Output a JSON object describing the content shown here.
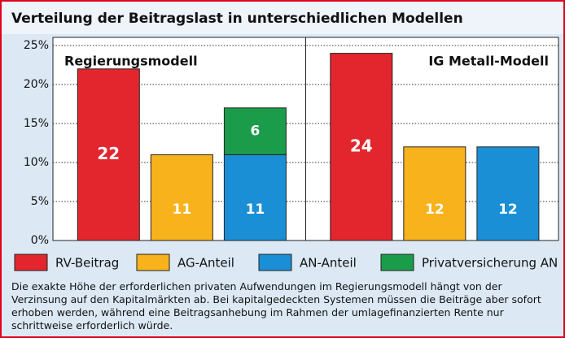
{
  "chart_data": {
    "type": "bar",
    "title": "Verteilung der Beitragslast in unterschiedlichen Modellen",
    "categories": [
      "Regierungsmodell",
      "IG Metall-Modell"
    ],
    "series": [
      {
        "name": "RV-Beitrag",
        "color": "#e3262d",
        "values": [
          22,
          24
        ]
      },
      {
        "name": "AG-Anteil",
        "color": "#f8b21c",
        "values": [
          11,
          12
        ]
      },
      {
        "name": "AN-Anteil",
        "color": "#1b8fd5",
        "values": [
          11,
          12
        ]
      },
      {
        "name": "Privatversicherung AN",
        "color": "#1a9c4a",
        "values": [
          6,
          null
        ],
        "stacked_on": "AN-Anteil"
      }
    ],
    "ylim": [
      0,
      25
    ],
    "yticks": [
      {
        "value": 0,
        "label": "0%"
      },
      {
        "value": 5,
        "label": "5%"
      },
      {
        "value": 10,
        "label": "10%"
      },
      {
        "value": 15,
        "label": "15%"
      },
      {
        "value": 20,
        "label": "20%"
      },
      {
        "value": 25,
        "label": "25%"
      }
    ],
    "grid": true,
    "legend": "bottom",
    "note": "Die exakte Höhe der erforderlichen privaten Aufwendungen im Regierungsmodell hängt von der Verzinsung auf den Kapitalmärkten ab. Bei kapitalgedeckten Systemen müssen die Beiträge aber sofort erhoben werden, während eine Beitragsanhebung im Rahmen der umlagefinanzierten Rente nur schrittweise erforderlich würde."
  }
}
